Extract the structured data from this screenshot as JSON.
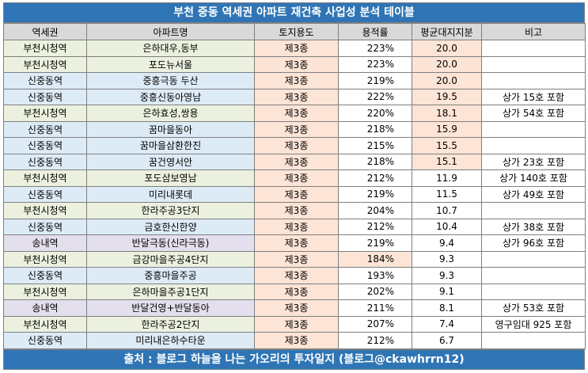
{
  "title": "부천 중동 역세권 아파트 재건축 사업성 분석 테이블",
  "table": {
    "header": [
      "역세권",
      "아파트명",
      "토지용도",
      "용적률",
      "평균대지지분",
      "비고"
    ],
    "rows": [
      {
        "station": "부천시청역",
        "name": "은하대우,동부",
        "zoning": "제3종",
        "far": "223%",
        "land": "20.0",
        "color": "#ebf1de",
        "land_color": "#fce4d6"
      },
      {
        "station": "부천시청역",
        "name": "포도뉴서울",
        "zoning": "제3종",
        "far": "223%",
        "land": "20.0",
        "color": "#ebf1de",
        "land_color": "#fce4d6"
      },
      {
        "station": "신중동역",
        "name": "중흥극동 두산",
        "zoning": "제3종",
        "far": "219%",
        "land": "20.0",
        "color": "#ddebf7",
        "land_color": "#fce4d6"
      },
      {
        "station": "신중동역",
        "name": "중흥신동아영남",
        "zoning": "제3종",
        "far": "222%",
        "land": "19.5",
        "note": "상가 15호 포함",
        "color": "#ddebf7",
        "land_color": "#fce4d6"
      },
      {
        "station": "부천시청역",
        "name": "은하효성,쌍용",
        "zoning": "제3종",
        "far": "220%",
        "land": "18.1",
        "note": "상가 54호 포함",
        "color": "#ebf1de",
        "land_color": "#fce4d6"
      },
      {
        "station": "신중동역",
        "name": "꿈마을동아",
        "zoning": "제3종",
        "far": "218%",
        "land": "15.9",
        "color": "#ddebf7",
        "land_color": "#fce4d6"
      },
      {
        "station": "신중동역",
        "name": "꿈마을삼환한진",
        "zoning": "제3종",
        "far": "215%",
        "land": "15.5",
        "color": "#ddebf7",
        "land_color": "#fce4d6"
      },
      {
        "station": "신중동역",
        "name": "꿈건영서안",
        "zoning": "제3종",
        "far": "218%",
        "land": "15.1",
        "note": "상가 23호 포함",
        "color": "#ddebf7",
        "land_color": "#fce4d6"
      },
      {
        "station": "부천시청역",
        "name": "포도삼보영남",
        "zoning": "제3종",
        "far": "212%",
        "land": "11.9",
        "note": "상가 140호 포함",
        "color": "#ebf1de"
      },
      {
        "station": "신중동역",
        "name": "미리내롯데",
        "zoning": "제3종",
        "far": "219%",
        "land": "11.5",
        "note": "상가 49호 포함",
        "color": "#ddebf7"
      },
      {
        "station": "부천시청역",
        "name": "한라주공3단지",
        "zoning": "제3종",
        "far": "204%",
        "land": "10.7",
        "color": "#ebf1de"
      },
      {
        "station": "신중동역",
        "name": "금호한신한양",
        "zoning": "제3종",
        "far": "212%",
        "land": "10.4",
        "note": "상가 38호 포함",
        "color": "#ddebf7"
      },
      {
        "station": "송내역",
        "name": "반달극동(신라극동)",
        "zoning": "제3종",
        "far": "219%",
        "land": "9.4",
        "note": "상가 96호 포함",
        "color": "#e4dfec"
      },
      {
        "station": "부천시청역",
        "name": "금강마을주공4단지",
        "zoning": "제3종",
        "far": "184%",
        "land": "9.3",
        "color": "#ebf1de",
        "far_color": "#fce4d6"
      },
      {
        "station": "신중동역",
        "name": "중흥마을주공",
        "zoning": "제3종",
        "far": "193%",
        "land": "9.3",
        "color": "#ddebf7"
      },
      {
        "station": "부천시청역",
        "name": "은하마을주공1단지",
        "zoning": "제3종",
        "far": "202%",
        "land": "9.1",
        "color": "#ebf1de"
      },
      {
        "station": "송내역",
        "name": "반달건영+반달동아",
        "zoning": "제3종",
        "far": "211%",
        "land": "8.1",
        "note": "상가 53호 포함",
        "color": "#e4dfec"
      },
      {
        "station": "부천시청역",
        "name": "한라주공2단지",
        "zoning": "제3종",
        "far": "207%",
        "land": "7.4",
        "note": "영구임대 925 포함",
        "color": "#ebf1de"
      },
      {
        "station": "신중동역",
        "name": "미리내은하수타운",
        "zoning": "제3종",
        "far": "212%",
        "land": "6.7",
        "color": "#ddebf7"
      }
    ]
  },
  "footer": "출처 : 블로그 하늘을 나는 가오리의 투자일지 (블로그@ckawhrrn12)"
}
